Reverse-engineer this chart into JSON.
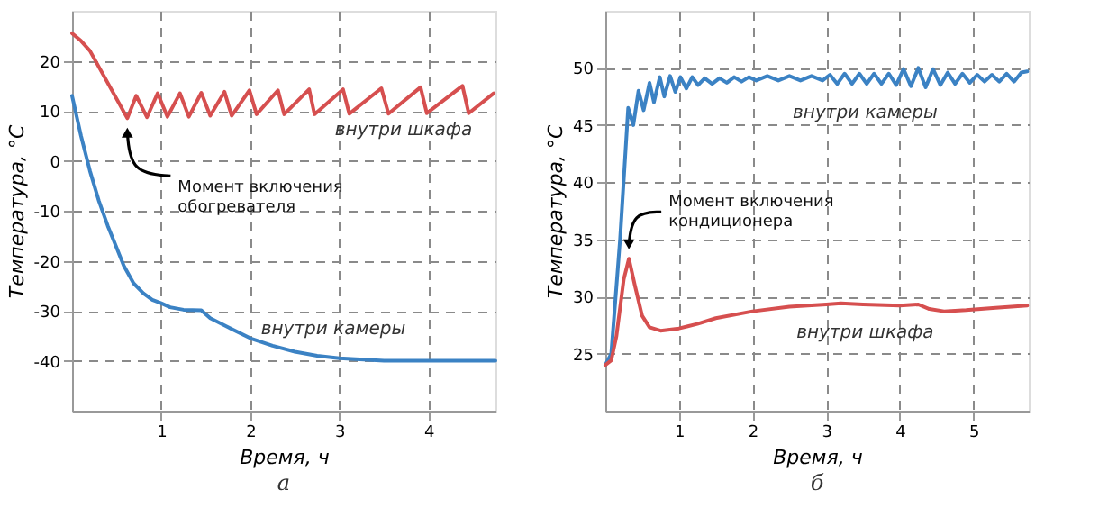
{
  "chart_data": [
    {
      "type": "line",
      "title": "а",
      "xlabel": "Время, ч",
      "ylabel": "Температура, °C",
      "xlim": [
        0,
        4.75
      ],
      "ylim": [
        -50,
        30
      ],
      "xticks": [
        1,
        2,
        3,
        4
      ],
      "yticks": [
        -40,
        -30,
        -20,
        -10,
        0,
        10,
        20
      ],
      "grid": true,
      "line_style": "solid",
      "series": [
        {
          "name": "внутри шкафа",
          "color": "#d64f4f",
          "x": [
            0,
            0.1,
            0.2,
            0.62,
            0.72,
            0.84,
            0.96,
            1.07,
            1.21,
            1.31,
            1.45,
            1.55,
            1.71,
            1.79,
            1.99,
            2.07,
            2.31,
            2.38,
            2.66,
            2.72,
            3.04,
            3.11,
            3.47,
            3.55,
            3.91,
            3.98,
            4.38,
            4.45,
            4.73
          ],
          "values": [
            25.5,
            24,
            22,
            8.5,
            13,
            8.7,
            13.5,
            8.8,
            13.5,
            8.8,
            13.6,
            9,
            13.8,
            9,
            14.1,
            9.3,
            14.1,
            9.3,
            14.3,
            9.3,
            14.3,
            9.4,
            14.5,
            9.4,
            14.7,
            9.5,
            15,
            9.5,
            13.5
          ]
        },
        {
          "name": "внутри камеры",
          "color": "#3b82c4",
          "x": [
            0,
            0.1,
            0.2,
            0.3,
            0.4,
            0.49,
            0.58,
            0.69,
            0.8,
            0.9,
            1,
            1.1,
            1.25,
            1.45,
            1.55,
            1.75,
            2,
            2.25,
            2.5,
            2.75,
            3,
            3.5,
            4.75
          ],
          "values": [
            13,
            5,
            -2,
            -8,
            -13,
            -17,
            -21,
            -24.5,
            -26.5,
            -27.8,
            -28.5,
            -29.3,
            -29.8,
            -29.9,
            -31.5,
            -33.3,
            -35.5,
            -37,
            -38.2,
            -39,
            -39.5,
            -40,
            -40
          ]
        }
      ],
      "annotations": [
        {
          "text": "Момент включения\nобогревателя",
          "x": 0.62,
          "y": 8.5
        }
      ]
    },
    {
      "type": "line",
      "title": "б",
      "xlabel": "Время, ч",
      "ylabel": "Температура, °C",
      "xlim": [
        0,
        5.75
      ],
      "ylim": [
        20,
        55
      ],
      "xticks": [
        1,
        2,
        3,
        4,
        5
      ],
      "yticks": [
        25,
        30,
        35,
        40,
        45,
        50
      ],
      "grid": true,
      "line_style": "solid",
      "series": [
        {
          "name": "внутри камеры",
          "color": "#3b82c4",
          "x": [
            0,
            0.08,
            0.2,
            0.31,
            0.38,
            0.45,
            0.52,
            0.6,
            0.66,
            0.74,
            0.8,
            0.88,
            0.95,
            1.02,
            1.1,
            1.18,
            1.26,
            1.35,
            1.45,
            1.55,
            1.65,
            1.75,
            1.85,
            1.95,
            2.05,
            2.2,
            2.35,
            2.5,
            2.65,
            2.8,
            2.95,
            3.05,
            3.15,
            3.25,
            3.35,
            3.45,
            3.55,
            3.65,
            3.75,
            3.85,
            3.95,
            4.05,
            4.15,
            4.25,
            4.35,
            4.45,
            4.55,
            4.65,
            4.75,
            4.85,
            4.95,
            5.05,
            5.15,
            5.25,
            5.35,
            5.45,
            5.55,
            5.65,
            5.73
          ],
          "values": [
            24,
            25,
            35,
            46.5,
            45,
            48,
            46.3,
            48.7,
            47,
            49.2,
            47.5,
            49.3,
            47.9,
            49.2,
            48.2,
            49.2,
            48.5,
            49.1,
            48.6,
            49.1,
            48.7,
            49.2,
            48.8,
            49.2,
            48.9,
            49.3,
            48.9,
            49.3,
            48.9,
            49.3,
            48.9,
            49.4,
            48.6,
            49.5,
            48.6,
            49.5,
            48.6,
            49.5,
            48.6,
            49.5,
            48.5,
            49.9,
            48.4,
            50,
            48.3,
            49.9,
            48.5,
            49.6,
            48.6,
            49.5,
            48.7,
            49.4,
            48.8,
            49.4,
            48.8,
            49.5,
            48.8,
            49.6,
            49.7
          ]
        },
        {
          "name": "внутри шкафа",
          "color": "#d64f4f",
          "x": [
            0,
            0.08,
            0.15,
            0.25,
            0.32,
            0.4,
            0.5,
            0.6,
            0.75,
            1,
            1.25,
            1.5,
            2,
            2.5,
            3,
            3.2,
            3.5,
            4,
            4.25,
            4.4,
            4.6,
            4.9,
            5.3,
            5.73
          ],
          "values": [
            24,
            24.4,
            26.5,
            31.5,
            33.3,
            31,
            28.3,
            27.3,
            27,
            27.2,
            27.6,
            28.1,
            28.7,
            29.1,
            29.3,
            29.4,
            29.3,
            29.2,
            29.3,
            28.9,
            28.7,
            28.8,
            29,
            29.2
          ]
        }
      ],
      "annotations": [
        {
          "text": "Момент включения\nкондиционера",
          "x": 0.32,
          "y": 33.3
        }
      ]
    }
  ]
}
